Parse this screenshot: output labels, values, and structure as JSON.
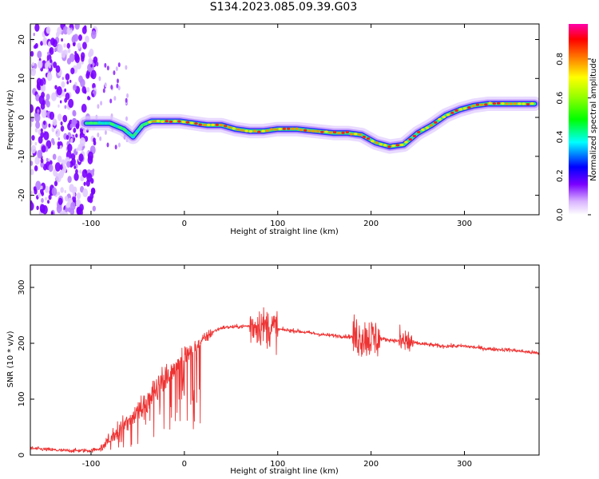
{
  "title": "S134.2023.085.09.39.G03",
  "chart_data": [
    {
      "type": "heatmap",
      "xlabel": "Height of straight line (km)",
      "ylabel": "Frequency (Hz)",
      "xlim": [
        -165,
        380
      ],
      "ylim": [
        -25,
        24
      ],
      "xticks": [
        -100,
        0,
        100,
        200,
        300
      ],
      "yticks": [
        20,
        10,
        0,
        -10,
        -20
      ],
      "grid": false,
      "ridge": {
        "x": [
          -105,
          -95,
          -80,
          -65,
          -55,
          -45,
          -35,
          -20,
          -5,
          10,
          25,
          40,
          55,
          70,
          85,
          100,
          120,
          140,
          160,
          175,
          190,
          205,
          220,
          235,
          250,
          265,
          280,
          295,
          310,
          325,
          340,
          355,
          375
        ],
        "y": [
          -1.5,
          -1.5,
          -1.5,
          -3,
          -5,
          -2,
          -1,
          -1,
          -1,
          -1.5,
          -2,
          -2,
          -3,
          -3.5,
          -3.5,
          -3,
          -3,
          -3.5,
          -4,
          -4,
          -4.5,
          -6.5,
          -7.5,
          -7,
          -4,
          -2,
          0.5,
          2,
          3,
          3.5,
          3.5,
          3.5,
          3.5
        ]
      },
      "colorbar": {
        "label": "Normalized spectral amplitude",
        "ticks": [
          "0.0",
          "0.2",
          "0.4",
          "0.6",
          "0.8"
        ],
        "range": [
          0,
          0.98
        ]
      }
    },
    {
      "type": "line",
      "xlabel": "Height of straight line (km)",
      "ylabel": "SNR (10 * v/v)",
      "xlim": [
        -165,
        380
      ],
      "ylim": [
        0,
        340
      ],
      "xticks": [
        -100,
        0,
        100,
        200,
        300
      ],
      "yticks": [
        0,
        100,
        200,
        300
      ],
      "grid": false,
      "color": "#ee3333",
      "trend": {
        "x": [
          -165,
          -130,
          -100,
          -90,
          -80,
          -60,
          -40,
          -20,
          0,
          20,
          30,
          40,
          60,
          80,
          100,
          120,
          150,
          175,
          200,
          225,
          250,
          275,
          300,
          325,
          350,
          380
        ],
        "y": [
          12,
          8,
          8,
          12,
          30,
          60,
          100,
          140,
          175,
          205,
          220,
          228,
          230,
          232,
          225,
          222,
          215,
          212,
          210,
          205,
          200,
          195,
          195,
          190,
          188,
          182
        ]
      },
      "noise_bursts": [
        {
          "from": 70,
          "to": 100,
          "amplitude": 60
        },
        {
          "from": 180,
          "to": 210,
          "amplitude": 65
        },
        {
          "from": 230,
          "to": 245,
          "amplitude": 50
        }
      ]
    }
  ]
}
